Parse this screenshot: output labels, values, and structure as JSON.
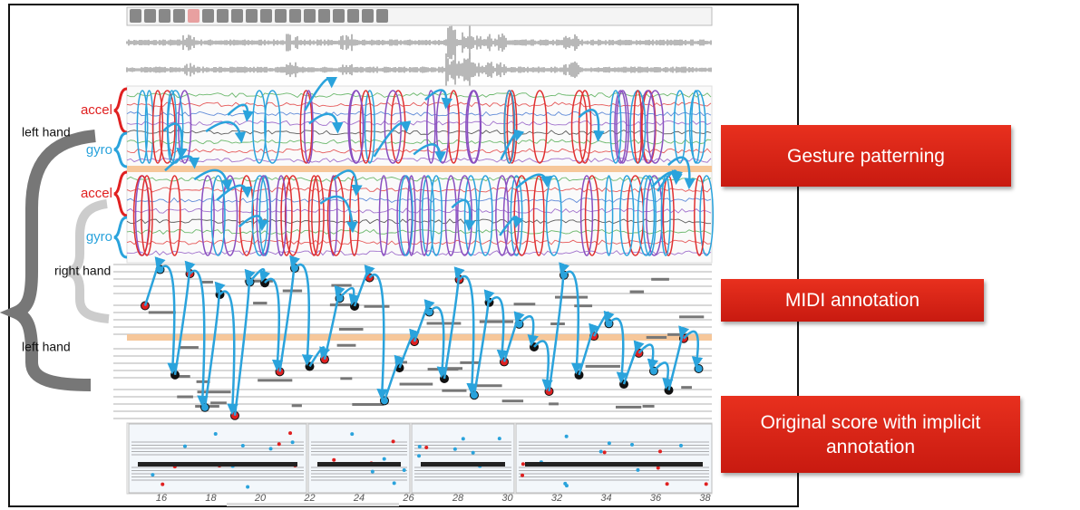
{
  "sensor_labels": [
    "accel",
    "gyro",
    "accel",
    "gyro"
  ],
  "hand_labels": [
    "left hand",
    "right hand",
    "left hand"
  ],
  "callouts": [
    "Gesture patterning",
    "MIDI annotation",
    "Original score with implicit annotation"
  ],
  "measure_numbers": [
    "16",
    "18",
    "20",
    "22",
    "24",
    "26",
    "28",
    "30",
    "32",
    "34",
    "36",
    "38"
  ]
}
